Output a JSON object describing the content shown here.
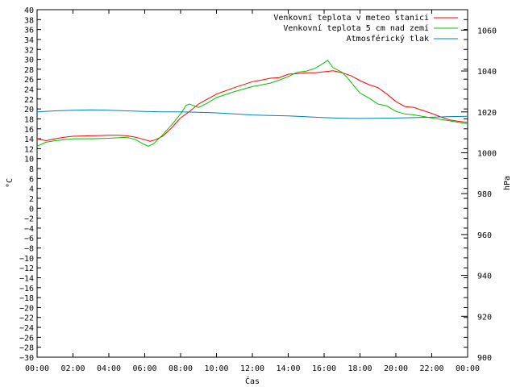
{
  "chart_data": {
    "type": "line",
    "xlabel": "Čas",
    "ylabel": "°C",
    "y2label": "hPa",
    "x_ticks": [
      "00:00",
      "02:00",
      "04:00",
      "06:00",
      "08:00",
      "10:00",
      "12:00",
      "14:00",
      "16:00",
      "18:00",
      "20:00",
      "22:00",
      "00:00"
    ],
    "x_range_hours": [
      0,
      24
    ],
    "ylim": [
      -30,
      40
    ],
    "y_ticks": [
      40,
      38,
      36,
      34,
      32,
      30,
      28,
      26,
      24,
      22,
      20,
      18,
      16,
      14,
      12,
      10,
      8,
      6,
      4,
      2,
      0,
      -2,
      -4,
      -6,
      -8,
      -10,
      -12,
      -14,
      -16,
      -18,
      -20,
      -22,
      -24,
      -26,
      -28,
      -30
    ],
    "y_tick_labels": [
      "40",
      "38",
      "36",
      "34",
      "32",
      "30",
      "28",
      "26",
      "24",
      "22",
      "20",
      "18",
      "16",
      "14",
      "12",
      "10",
      "8",
      "6",
      "4",
      "2",
      "0",
      "−2",
      "−4",
      "−6",
      "−8",
      "−10",
      "−12",
      "−14",
      "−16",
      "−18",
      "−20",
      "−22",
      "−24",
      "−26",
      "−28",
      "−30"
    ],
    "y2lim": [
      900,
      1070
    ],
    "y2_ticks": [
      1060,
      1040,
      1020,
      1000,
      980,
      960,
      940,
      920,
      900
    ],
    "y2_tick_labels": [
      "1060",
      "1040",
      "1020",
      "1000",
      "980",
      "960",
      "940",
      "920",
      "900"
    ],
    "grid": false,
    "legend_position": "top-right",
    "series": [
      {
        "name": "Venkovní teplota v meteo stanici",
        "color": "#ff0000",
        "axis": "left",
        "x": [
          0,
          0.5,
          1,
          1.5,
          2,
          3,
          4,
          4.5,
          5,
          5.5,
          6,
          6.3,
          6.6,
          7,
          7.5,
          8,
          8.5,
          9,
          9.5,
          10,
          11,
          12,
          12.5,
          13,
          13.5,
          14,
          14.5,
          15,
          15.5,
          16,
          16.5,
          17,
          17.5,
          18,
          18.5,
          19,
          19.5,
          20,
          20.5,
          21,
          21.5,
          22,
          22.5,
          23,
          23.5,
          24
        ],
        "values": [
          14,
          13.6,
          14,
          14.3,
          14.5,
          14.6,
          14.7,
          14.7,
          14.6,
          14.3,
          13.8,
          13.5,
          13.8,
          14.5,
          16.2,
          18.2,
          19.5,
          21,
          22,
          23,
          24.3,
          25.5,
          25.8,
          26.2,
          26.3,
          27,
          27.1,
          27.3,
          27.3,
          27.5,
          27.7,
          27.3,
          26.7,
          25.7,
          24.9,
          24.3,
          23,
          21.5,
          20.5,
          20.3,
          19.7,
          19.1,
          18.4,
          17.8,
          17.5,
          17.3
        ]
      },
      {
        "name": "Venkovní teplota 5 cm nad zemí",
        "color": "#00c000",
        "axis": "left",
        "x": [
          0,
          0.5,
          1,
          2,
          3,
          4,
          5,
          5.5,
          6,
          6.2,
          6.5,
          7,
          7.5,
          8,
          8.3,
          8.5,
          8.7,
          9,
          9.5,
          10,
          11,
          12,
          13,
          13.5,
          14,
          14.5,
          15,
          15.5,
          16,
          16.2,
          16.5,
          17,
          17.3,
          17.7,
          18,
          18.5,
          19,
          19.5,
          20,
          20.5,
          21,
          22,
          23,
          24
        ],
        "values": [
          12.5,
          13.3,
          13.6,
          14,
          14,
          14.1,
          14.3,
          13.8,
          12.8,
          12.5,
          13,
          14.8,
          16.8,
          19,
          20.7,
          21,
          20.7,
          20.3,
          21.2,
          22.3,
          23.5,
          24.5,
          25.2,
          25.8,
          26.5,
          27.4,
          27.6,
          28.2,
          29.3,
          29.8,
          28.3,
          27.4,
          26.3,
          24.5,
          23.2,
          22.2,
          21,
          20.6,
          19.5,
          19,
          18.8,
          18.2,
          17.6,
          17
        ]
      },
      {
        "name": "Atmosférický tlak",
        "color": "#0080c0",
        "axis": "right",
        "x": [
          0,
          1,
          2,
          3,
          4,
          5,
          6,
          7,
          8,
          9,
          10,
          11,
          12,
          13,
          14,
          15,
          16,
          17,
          18,
          19,
          20,
          21,
          22,
          23,
          24
        ],
        "values": [
          1020,
          1020.5,
          1020.8,
          1021,
          1020.8,
          1020.5,
          1020.2,
          1020,
          1020,
          1019.8,
          1019.5,
          1019,
          1018.5,
          1018.2,
          1018,
          1017.6,
          1017.2,
          1016.9,
          1016.8,
          1016.9,
          1017,
          1017.2,
          1017.4,
          1017.7,
          1017.8
        ]
      }
    ]
  }
}
